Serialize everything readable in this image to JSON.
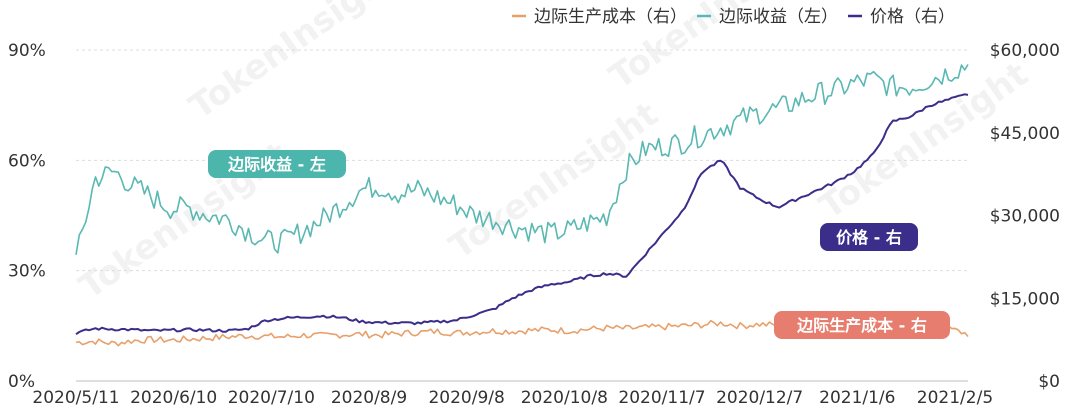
{
  "chart_data": {
    "type": "line",
    "x_tick_labels": [
      "2020/5/11",
      "2020/6/10",
      "2020/7/10",
      "2020/8/9",
      "2020/9/8",
      "2020/10/8",
      "2020/11/7",
      "2020/12/7",
      "2021/1/6",
      "2021/2/5"
    ],
    "x_start": "2020/5/11",
    "x_end": "2021/2/9",
    "left_axis": {
      "ticks": [
        "0%",
        "30%",
        "60%",
        "90%"
      ],
      "min": 0,
      "max": 90,
      "unit": "%"
    },
    "right_axis": {
      "ticks": [
        "$0",
        "$15,000",
        "$30,000",
        "$45,000",
        "$60,000"
      ],
      "min": 0,
      "max": 60000,
      "unit": "$"
    },
    "grid": true,
    "legend_position": "top-right",
    "series": [
      {
        "name": "边际生产成本（右）",
        "axis": "right",
        "color": "#e8a06a",
        "values": [
          7000,
          7200,
          6800,
          7300,
          7500,
          7400,
          7600,
          7800,
          8000,
          8200,
          8100,
          8000,
          8300,
          8200,
          8400,
          8500,
          8300,
          8600,
          8800,
          9000,
          8700,
          8900,
          9100,
          9000,
          9200,
          9300,
          9100,
          9400,
          9600,
          9500,
          9700,
          9800,
          10000,
          10200,
          10500,
          10000,
          10300,
          10100,
          10500,
          10800,
          11000,
          11200,
          11000,
          10800,
          10500,
          10300,
          9500,
          8500
        ]
      },
      {
        "name": "边际收益（左）",
        "axis": "left",
        "color": "#5ab8b2",
        "values": [
          33,
          55,
          57,
          53,
          50,
          47,
          47,
          45,
          44,
          41,
          38,
          38,
          41,
          44,
          48,
          52,
          53,
          51,
          52,
          50,
          48,
          45,
          44,
          42,
          41,
          40,
          41,
          43,
          45,
          58,
          63,
          64,
          65,
          67,
          69,
          71,
          73,
          74,
          76,
          78,
          79,
          81,
          82,
          80,
          80,
          82,
          84,
          86
        ]
      },
      {
        "name": "价格（右）",
        "axis": "right",
        "color": "#3b2d8a",
        "values": [
          8700,
          9500,
          9400,
          9300,
          9100,
          9200,
          9300,
          9200,
          9100,
          9400,
          11000,
          11400,
          11600,
          11800,
          11500,
          10800,
          10600,
          10500,
          10500,
          10700,
          11000,
          12000,
          13000,
          15000,
          16500,
          17500,
          18000,
          19000,
          19500,
          19000,
          23000,
          27000,
          31000,
          38000,
          40000,
          35000,
          33000,
          31500,
          33000,
          34500,
          36000,
          38000,
          41000,
          47000,
          48000,
          50000,
          51000,
          52000
        ]
      }
    ],
    "annotations": [
      {
        "label": "边际收益 - 左",
        "color": "#4db6ac"
      },
      {
        "label": "价格 - 右",
        "color": "#3b2d8a"
      },
      {
        "label": "边际生产成本 - 右",
        "color": "#e77d6e"
      }
    ],
    "watermark": "TokenInsight"
  }
}
